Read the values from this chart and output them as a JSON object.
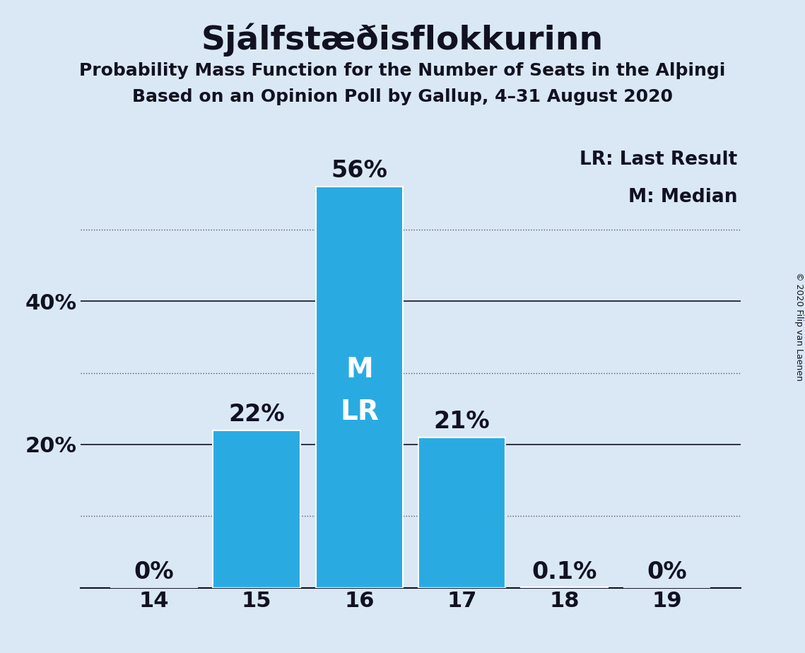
{
  "title": "Sjálfstæðisflokkurinn",
  "subtitle1": "Probability Mass Function for the Number of Seats in the Alþingi",
  "subtitle2": "Based on an Opinion Poll by Gallup, 4–31 August 2020",
  "copyright": "© 2020 Filip van Laenen",
  "categories": [
    14,
    15,
    16,
    17,
    18,
    19
  ],
  "values": [
    0.0,
    0.22,
    0.56,
    0.21,
    0.001,
    0.0
  ],
  "bar_labels": [
    "0%",
    "22%",
    "56%",
    "21%",
    "0.1%",
    "0%"
  ],
  "bar_color": "#29ABE2",
  "background_color": "#DAE8F5",
  "median_bar": 16,
  "last_result_bar": 16,
  "legend_lr": "LR: Last Result",
  "legend_m": "M: Median",
  "ylim": [
    0,
    0.62
  ],
  "solid_yticks": [
    0.2,
    0.4
  ],
  "solid_ytick_labels": [
    "20%",
    "40%"
  ],
  "dotted_yticks": [
    0.1,
    0.3,
    0.5
  ],
  "title_fontsize": 34,
  "subtitle_fontsize": 18,
  "tick_fontsize": 22,
  "bar_label_fontsize": 24,
  "inside_label_fontsize": 28,
  "inside_label_color": "#FFFFFF",
  "text_color": "#111122",
  "bar_width": 0.85
}
